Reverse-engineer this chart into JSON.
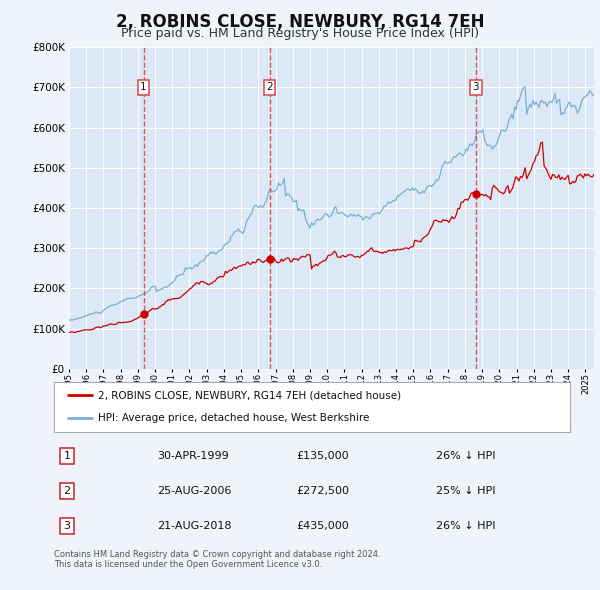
{
  "title": "2, ROBINS CLOSE, NEWBURY, RG14 7EH",
  "subtitle": "Price paid vs. HM Land Registry's House Price Index (HPI)",
  "title_fontsize": 12,
  "subtitle_fontsize": 9,
  "background_color": "#f0f4fa",
  "plot_bg_color": "#dce8f5",
  "grid_color": "#ffffff",
  "ylim": [
    0,
    800000
  ],
  "yticks": [
    0,
    100000,
    200000,
    300000,
    400000,
    500000,
    600000,
    700000,
    800000
  ],
  "red_line_color": "#cc0000",
  "blue_line_color": "#7aafd4",
  "dashed_line_color": "#dd4444",
  "marker_color": "#cc0000",
  "sale_dates": [
    1999.33,
    2006.65,
    2018.64
  ],
  "sale_values": [
    135000,
    272500,
    435000
  ],
  "sale_labels": [
    "1",
    "2",
    "3"
  ],
  "legend_label_red": "2, ROBINS CLOSE, NEWBURY, RG14 7EH (detached house)",
  "legend_label_blue": "HPI: Average price, detached house, West Berkshire",
  "table_rows": [
    [
      "1",
      "30-APR-1999",
      "£135,000",
      "26% ↓ HPI"
    ],
    [
      "2",
      "25-AUG-2006",
      "£272,500",
      "25% ↓ HPI"
    ],
    [
      "3",
      "21-AUG-2018",
      "£435,000",
      "26% ↓ HPI"
    ]
  ],
  "footnote": "Contains HM Land Registry data © Crown copyright and database right 2024.\nThis data is licensed under the Open Government Licence v3.0.",
  "xlim_start": 1995.0,
  "xlim_end": 2025.5
}
